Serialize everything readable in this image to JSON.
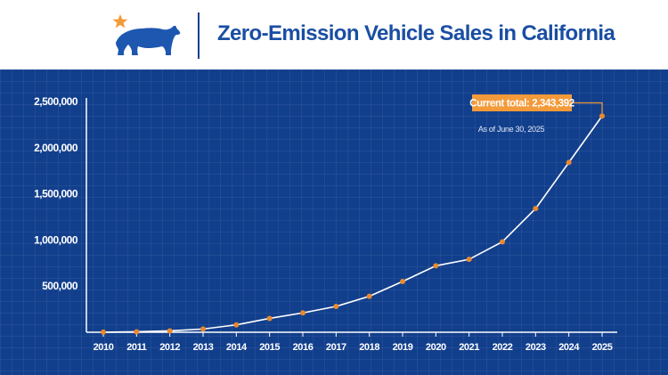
{
  "header": {
    "title": "Zero-Emission Vehicle Sales in California",
    "logo_icon": "california-bear-star-icon"
  },
  "colors": {
    "background": "#123f8c",
    "line": "#ffffff",
    "marker": "#e8892f",
    "callout_bg": "#f39a3a",
    "title": "#1a4ea3",
    "logo": "#1d57b0",
    "star": "#f39a3a"
  },
  "chart_data": {
    "type": "line",
    "title": "",
    "xlabel": "",
    "ylabel": "",
    "categories": [
      "2010",
      "2011",
      "2012",
      "2013",
      "2014",
      "2015",
      "2016",
      "2017",
      "2018",
      "2019",
      "2020",
      "2021",
      "2022",
      "2023",
      "2024",
      "2025"
    ],
    "y_ticks": [
      500000,
      1000000,
      1500000,
      2000000,
      2500000
    ],
    "y_tick_labels": [
      "500,000",
      "1,000,000",
      "1,500,000",
      "2,000,000",
      "2,500,000"
    ],
    "ylim": [
      0,
      2500000
    ],
    "grid": true,
    "series": [
      {
        "values": [
          1000,
          5000,
          15000,
          35000,
          80000,
          150000,
          210000,
          280000,
          390000,
          550000,
          720000,
          790000,
          980000,
          1340000,
          1840000,
          2343392
        ]
      }
    ],
    "annotation": {
      "label": "Current total: 2,343,392",
      "sublabel": "As of June 30, 2025"
    }
  }
}
